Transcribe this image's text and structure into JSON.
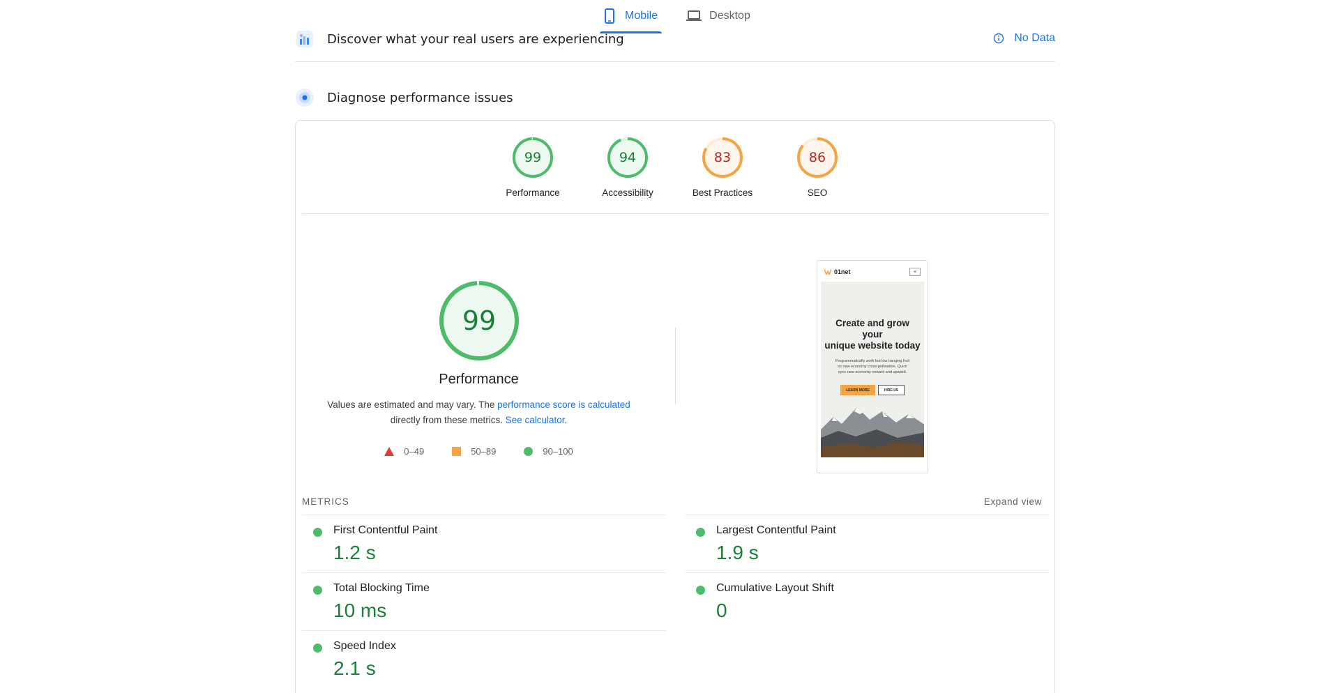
{
  "tabs": {
    "mobile_label": "Mobile",
    "desktop_label": "Desktop",
    "active": "mobile"
  },
  "field_data": {
    "title": "Discover what your real users are experiencing",
    "status_label": "No Data",
    "icon": "users-chart-icon"
  },
  "lab_data": {
    "title": "Diagnose performance issues",
    "icon": "lighthouse-icon"
  },
  "gauges": [
    {
      "label": "Performance",
      "score": "99",
      "value": 99,
      "color": "#4cbb6a",
      "text_color": "#188038"
    },
    {
      "label": "Accessibility",
      "score": "94",
      "value": 94,
      "color": "#4cbb6a",
      "text_color": "#188038"
    },
    {
      "label": "Best Practices",
      "score": "83",
      "value": 83,
      "color": "#f4a443",
      "text_color": "#c5221f"
    },
    {
      "label": "SEO",
      "score": "86",
      "value": 86,
      "color": "#f4a443",
      "text_color": "#c5221f"
    }
  ],
  "performance": {
    "score": "99",
    "value": 99,
    "title": "Performance",
    "desc_prefix": "Values are estimated and may vary. The ",
    "desc_link1": "performance score is calculated",
    "desc_middle": " directly from these metrics. ",
    "desc_link2": "See calculator",
    "desc_suffix": "."
  },
  "legend": [
    {
      "range": "0–49",
      "shape": "triangle",
      "color": "#e53935"
    },
    {
      "range": "50–89",
      "shape": "square",
      "color": "#f4a443"
    },
    {
      "range": "90–100",
      "shape": "circle",
      "color": "#4cbb6a"
    }
  ],
  "preview": {
    "brand": "01net",
    "menu_glyph": "≡",
    "hero_line1": "Create and grow",
    "hero_line2": "your",
    "hero_line3": "unique website today",
    "hero_sub": "Programmatically work but low hanging fruit so new economy cross-pollination. Quick sync new economy onward and upward.",
    "btn_primary": "LEARN MORE",
    "btn_secondary": "HIRE US"
  },
  "metrics": {
    "heading": "METRICS",
    "expand_label": "Expand view",
    "items": [
      {
        "label": "First Contentful Paint",
        "value": "1.2 s",
        "status": "good"
      },
      {
        "label": "Largest Contentful Paint",
        "value": "1.9 s",
        "status": "good"
      },
      {
        "label": "Total Blocking Time",
        "value": "10 ms",
        "status": "good"
      },
      {
        "label": "Cumulative Layout Shift",
        "value": "0",
        "status": "good"
      },
      {
        "label": "Speed Index",
        "value": "2.1 s",
        "status": "good"
      }
    ]
  }
}
